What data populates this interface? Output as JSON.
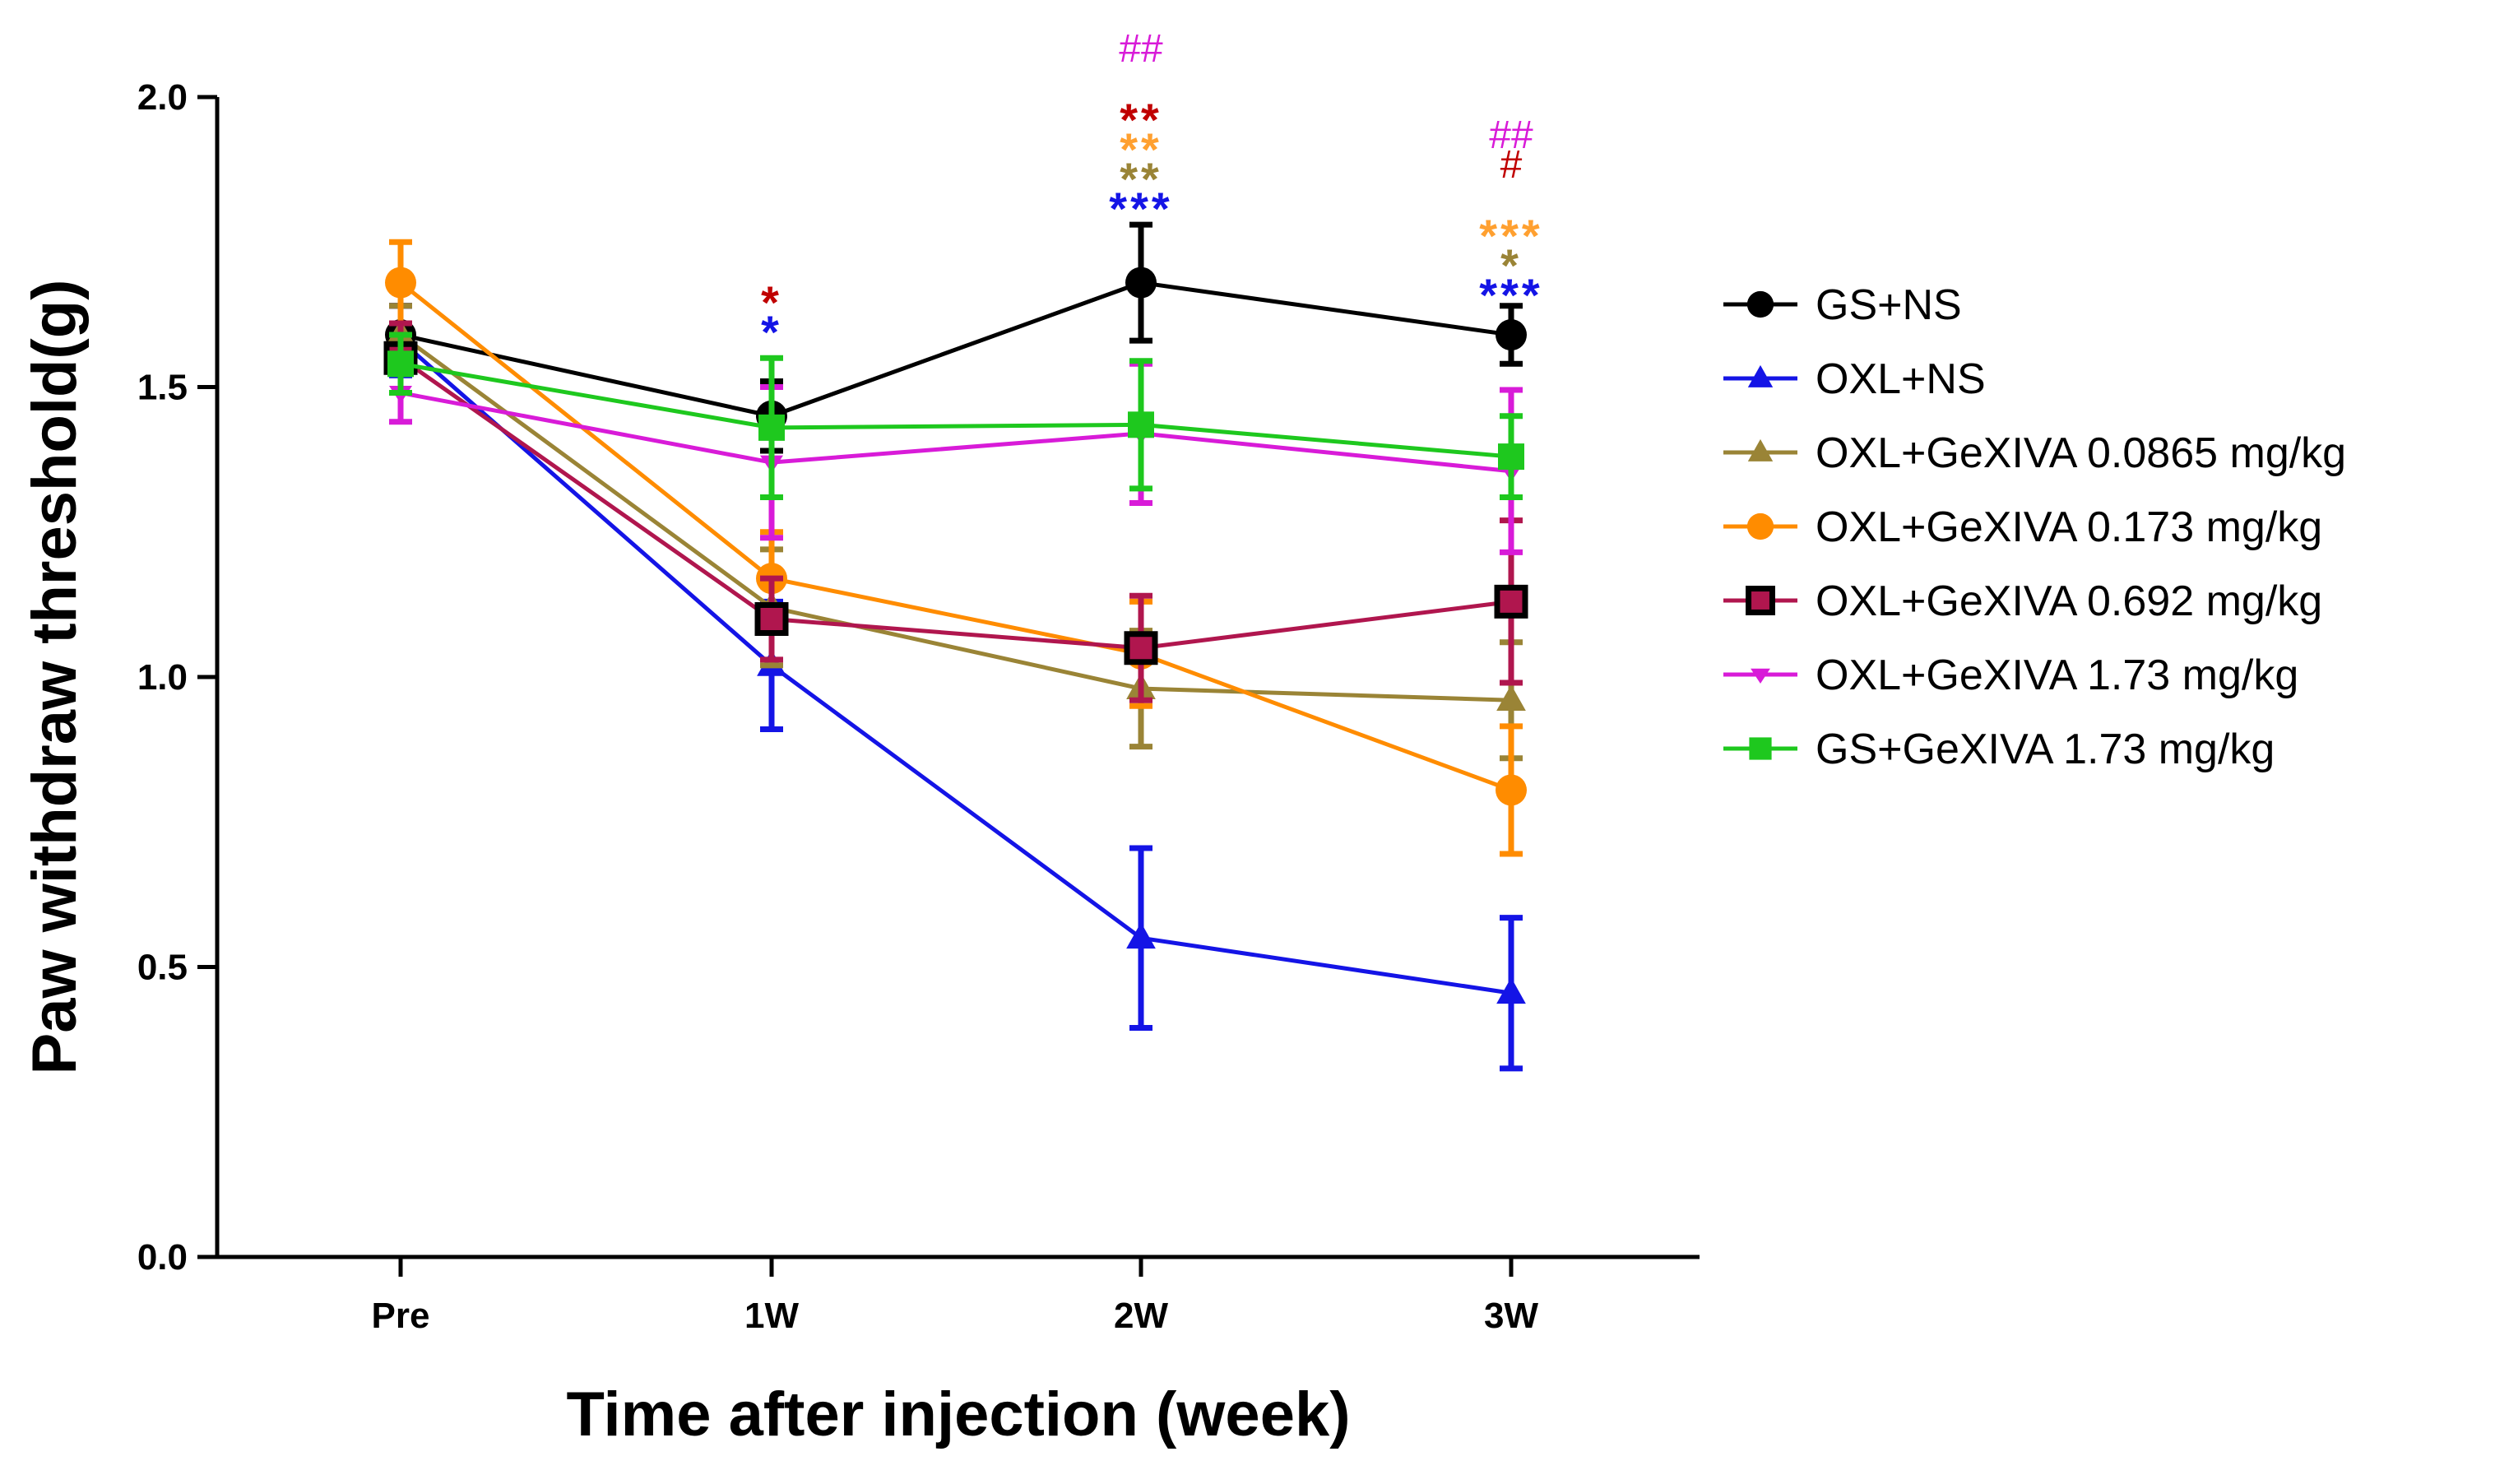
{
  "chart_data": {
    "type": "line",
    "title": "",
    "xlabel": "Time after injection (week)",
    "ylabel": "Paw withdraw threshold(g)",
    "categories": [
      "Pre",
      "1W",
      "2W",
      "3W"
    ],
    "ylim": [
      0,
      2.0
    ],
    "yticks": [
      {
        "value": 0.0,
        "label": "0.0"
      },
      {
        "value": 0.5,
        "label": "0.5"
      },
      {
        "value": 1.0,
        "label": "1.0"
      },
      {
        "value": 1.5,
        "label": "1.5"
      },
      {
        "value": 2.0,
        "label": "2.0"
      }
    ],
    "series": [
      {
        "name": "GS+NS",
        "color": "#000000",
        "marker": "circle",
        "values": [
          1.59,
          1.45,
          1.68,
          1.59
        ],
        "errors": [
          0.05,
          0.06,
          0.1,
          0.05
        ]
      },
      {
        "name": "OXL+NS",
        "color": "#1414e6",
        "marker": "triangle-up",
        "values": [
          1.58,
          1.02,
          0.55,
          0.455
        ],
        "errors": [
          0.06,
          0.11,
          0.155,
          0.13
        ]
      },
      {
        "name": "OXL+GeXIVA 0.0865 mg/kg",
        "color": "#9a8436",
        "marker": "triangle-up",
        "values": [
          1.59,
          1.12,
          0.98,
          0.96
        ],
        "errors": [
          0.05,
          0.1,
          0.1,
          0.1
        ]
      },
      {
        "name": "OXL+GeXIVA 0.173 mg/kg",
        "color": "#ff8c00",
        "marker": "circle",
        "values": [
          1.68,
          1.17,
          1.04,
          0.805
        ],
        "errors": [
          0.07,
          0.08,
          0.09,
          0.11
        ]
      },
      {
        "name": "OXL+GeXIVA 0.692 mg/kg",
        "color": "#b0164e",
        "marker": "square-open",
        "values": [
          1.55,
          1.1,
          1.05,
          1.13
        ],
        "errors": [
          0.06,
          0.07,
          0.09,
          0.14
        ]
      },
      {
        "name": "OXL+GeXIVA 1.73 mg/kg",
        "color": "#d81bd8",
        "marker": "triangle-down",
        "values": [
          1.49,
          1.37,
          1.42,
          1.355
        ],
        "errors": [
          0.05,
          0.13,
          0.12,
          0.14
        ]
      },
      {
        "name": "GS+GeXIVA 1.73 mg/kg",
        "color": "#1ec81e",
        "marker": "square",
        "values": [
          1.54,
          1.43,
          1.435,
          1.38
        ],
        "errors": [
          0.05,
          0.12,
          0.11,
          0.07
        ]
      }
    ],
    "annotations": [
      {
        "category": "1W",
        "text": "*",
        "color": "#1414e6",
        "row": 0,
        "kind": "star"
      },
      {
        "category": "1W",
        "text": "*",
        "color": "#c00000",
        "row": 1,
        "kind": "star"
      },
      {
        "category": "2W",
        "text": "***",
        "color": "#1414e6",
        "row": 0,
        "kind": "star"
      },
      {
        "category": "2W",
        "text": "**",
        "color": "#9a8436",
        "row": 1,
        "kind": "star"
      },
      {
        "category": "2W",
        "text": "**",
        "color": "#ffa030",
        "row": 2,
        "kind": "star"
      },
      {
        "category": "2W",
        "text": "**",
        "color": "#c00000",
        "row": 3,
        "kind": "star"
      },
      {
        "category": "2W",
        "text": "##",
        "color": "#d81bd8",
        "row": 5,
        "kind": "hash"
      },
      {
        "category": "3W",
        "text": "***",
        "color": "#1414e6",
        "row": 0,
        "kind": "star"
      },
      {
        "category": "3W",
        "text": "*",
        "color": "#9a8436",
        "row": 1,
        "kind": "star"
      },
      {
        "category": "3W",
        "text": "***",
        "color": "#ffa030",
        "row": 2,
        "kind": "star"
      },
      {
        "category": "3W",
        "text": "#",
        "color": "#c00000",
        "row": 4,
        "kind": "hash"
      },
      {
        "category": "3W",
        "text": "##",
        "color": "#d81bd8",
        "row": 5,
        "kind": "hash"
      }
    ],
    "legend_position": "right"
  }
}
